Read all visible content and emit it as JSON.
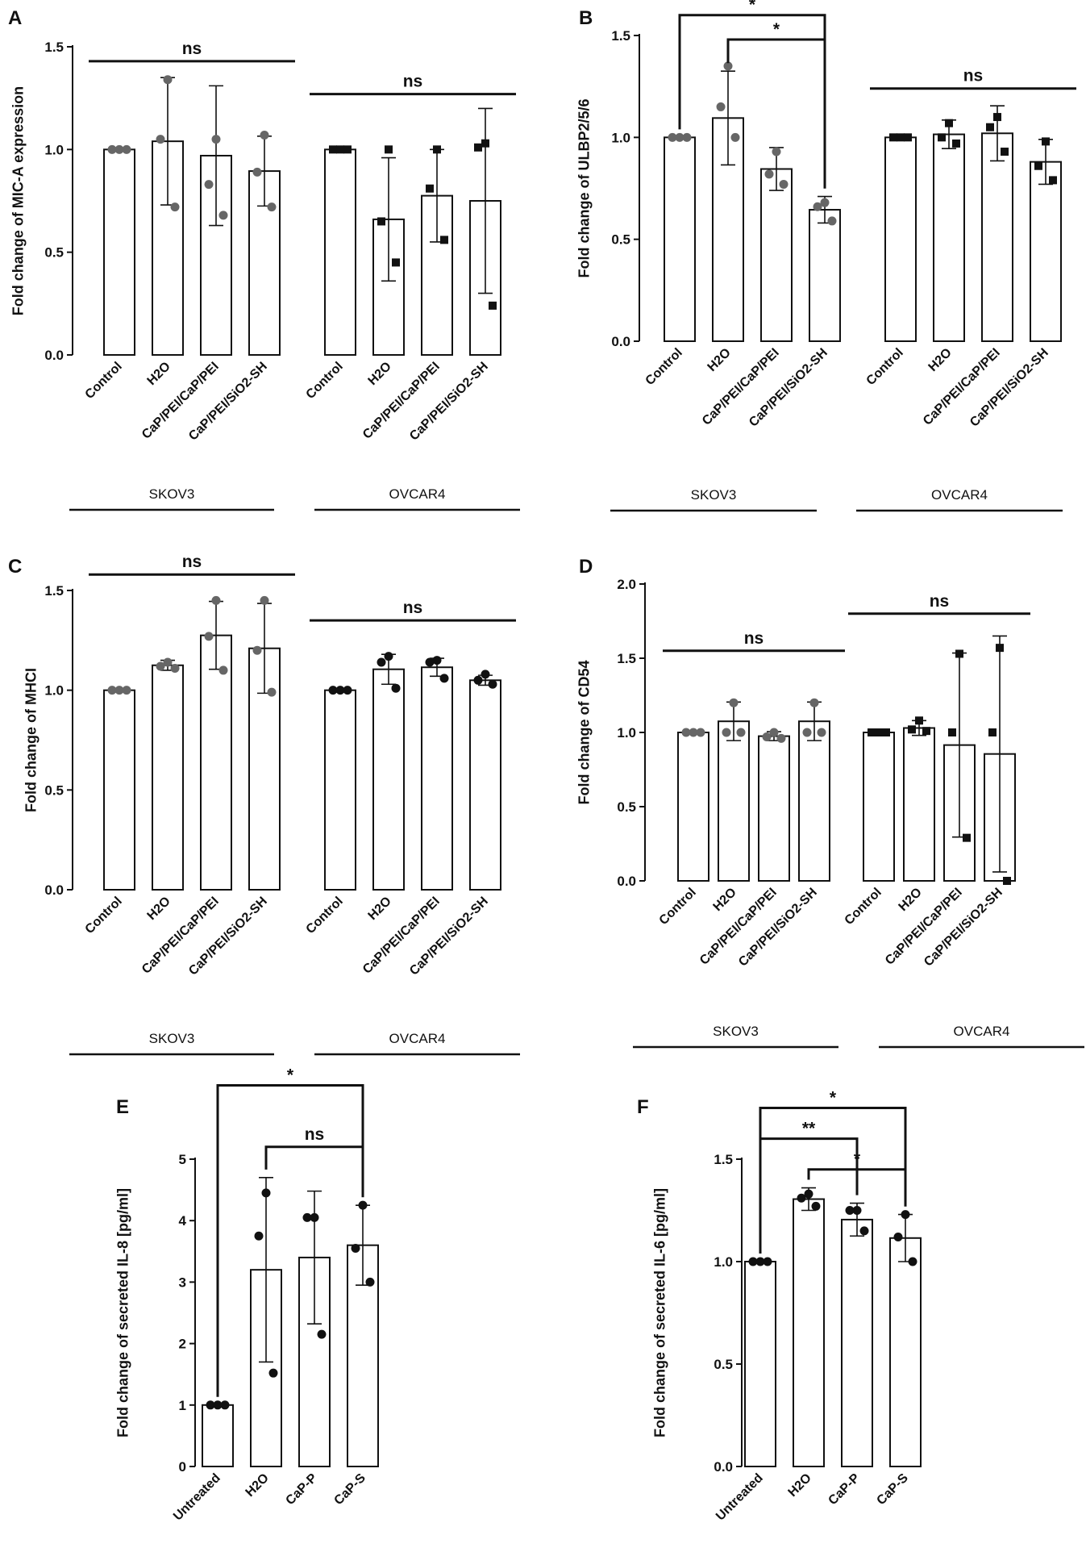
{
  "figure": {
    "background": "#ffffff",
    "ink": "#111111",
    "dot_color_dark": "#111111",
    "dot_color_grey": "#666666"
  },
  "chart_data": [
    {
      "panel": "A",
      "type": "bar",
      "ylabel": "Fold change of MIC-A expression",
      "ylim": [
        0,
        1.5
      ],
      "yticks": [
        "0.0",
        "0.5",
        "1.0",
        "1.5"
      ],
      "categories": [
        "Control",
        "H2O",
        "CaP/PEI/CaP/PEI",
        "CaP/PEI/SiO2-SH",
        "Control",
        "H2O",
        "CaP/PEI/CaP/PEI",
        "CaP/PEI/SiO2-SH"
      ],
      "groups": [
        {
          "label": "SKOV3",
          "from": 0,
          "to": 3
        },
        {
          "label": "OVCAR4",
          "from": 4,
          "to": 7
        }
      ],
      "values": [
        1.0,
        1.04,
        0.97,
        0.895,
        1.0,
        0.66,
        0.775,
        0.75
      ],
      "errors": [
        0.0,
        0.31,
        0.34,
        0.17,
        0.0,
        0.3,
        0.225,
        0.45
      ],
      "points": [
        [
          1.0,
          1.0,
          1.0
        ],
        [
          1.34,
          1.05,
          0.72
        ],
        [
          1.05,
          0.83,
          0.68
        ],
        [
          1.07,
          0.89,
          0.72
        ],
        [
          1.0,
          1.0,
          1.0
        ],
        [
          1.0,
          0.65,
          0.45
        ],
        [
          1.0,
          0.81,
          0.56
        ],
        [
          1.03,
          1.01,
          0.24
        ]
      ],
      "point_markers": [
        "circle",
        "circle",
        "circle",
        "circle",
        "square",
        "square",
        "square",
        "square"
      ],
      "point_shades": [
        "grey",
        "grey",
        "grey",
        "grey",
        "dark",
        "dark",
        "dark",
        "dark"
      ],
      "annotations": [
        {
          "text": "ns",
          "type": "line",
          "from": 0,
          "to": 3,
          "y": 1.43
        },
        {
          "text": "ns",
          "type": "line",
          "from": 4,
          "to": 7,
          "y": 1.27
        }
      ]
    },
    {
      "panel": "B",
      "type": "bar",
      "ylabel": "Fold change of ULBP2/5/6",
      "ylim": [
        0,
        1.5
      ],
      "yticks": [
        "0.0",
        "0.5",
        "1.0",
        "1.5"
      ],
      "categories": [
        "Control",
        "H2O",
        "CaP/PEI/CaP/PEI",
        "CaP/PEI/SiO2-SH",
        "Control",
        "H2O",
        "CaP/PEI/CaP/PEI",
        "CaP/PEI/SiO2-SH"
      ],
      "groups": [
        {
          "label": "SKOV3",
          "from": 0,
          "to": 3
        },
        {
          "label": "OVCAR4",
          "from": 4,
          "to": 7
        }
      ],
      "values": [
        1.0,
        1.095,
        0.845,
        0.645,
        1.0,
        1.015,
        1.02,
        0.88
      ],
      "errors": [
        0.0,
        0.23,
        0.105,
        0.065,
        0.0,
        0.07,
        0.135,
        0.11
      ],
      "points": [
        [
          1.0,
          1.0,
          1.0
        ],
        [
          1.35,
          1.15,
          1.0
        ],
        [
          0.93,
          0.82,
          0.77
        ],
        [
          0.68,
          0.66,
          0.59
        ],
        [
          1.0,
          1.0,
          1.0
        ],
        [
          1.07,
          1.0,
          0.97
        ],
        [
          1.1,
          1.05,
          0.93
        ],
        [
          0.98,
          0.86,
          0.79
        ]
      ],
      "point_markers": [
        "circle",
        "circle",
        "circle",
        "circle",
        "square",
        "square",
        "square",
        "square"
      ],
      "point_shades": [
        "grey",
        "grey",
        "grey",
        "grey",
        "dark",
        "dark",
        "dark",
        "dark"
      ],
      "annotations": [
        {
          "text": "*",
          "type": "bracket",
          "from": 0,
          "to": 3,
          "y": 1.6
        },
        {
          "text": "*",
          "type": "bracket",
          "from": 1,
          "to": 3,
          "y": 1.48
        },
        {
          "text": "ns",
          "type": "line",
          "from": 4,
          "to": 7,
          "y": 1.24
        }
      ]
    },
    {
      "panel": "C",
      "type": "bar",
      "ylabel": "Fold change of MHCI",
      "ylim": [
        0,
        1.5
      ],
      "yticks": [
        "0.0",
        "0.5",
        "1.0",
        "1.5"
      ],
      "categories": [
        "Control",
        "H2O",
        "CaP/PEI/CaP/PEI",
        "CaP/PEI/SiO2-SH",
        "Control",
        "H2O",
        "CaP/PEI/CaP/PEI",
        "CaP/PEI/SiO2-SH"
      ],
      "groups": [
        {
          "label": "SKOV3",
          "from": 0,
          "to": 3
        },
        {
          "label": "OVCAR4",
          "from": 4,
          "to": 7
        }
      ],
      "values": [
        1.0,
        1.125,
        1.275,
        1.21,
        1.0,
        1.105,
        1.115,
        1.05
      ],
      "errors": [
        0.0,
        0.025,
        0.17,
        0.225,
        0.0,
        0.075,
        0.045,
        0.025
      ],
      "points": [
        [
          1.0,
          1.0,
          1.0
        ],
        [
          1.14,
          1.12,
          1.11
        ],
        [
          1.45,
          1.27,
          1.1
        ],
        [
          1.45,
          1.2,
          0.99
        ],
        [
          1.0,
          1.0,
          1.0
        ],
        [
          1.17,
          1.14,
          1.01
        ],
        [
          1.15,
          1.14,
          1.06
        ],
        [
          1.08,
          1.05,
          1.03
        ]
      ],
      "point_markers": [
        "circle",
        "circle",
        "circle",
        "circle",
        "circle",
        "circle",
        "circle",
        "circle"
      ],
      "point_shades": [
        "grey",
        "grey",
        "grey",
        "grey",
        "dark",
        "dark",
        "dark",
        "dark"
      ],
      "annotations": [
        {
          "text": "ns",
          "type": "line",
          "from": 0,
          "to": 3,
          "y": 1.58
        },
        {
          "text": "ns",
          "type": "line",
          "from": 4,
          "to": 7,
          "y": 1.35
        }
      ]
    },
    {
      "panel": "D",
      "type": "bar",
      "ylabel": "Fold change of CD54",
      "ylim": [
        0,
        2.0
      ],
      "yticks": [
        "0.0",
        "0.5",
        "1.0",
        "1.5",
        "2.0"
      ],
      "categories": [
        "Control",
        "H2O",
        "CaP/PEI/CaP/PEI",
        "CaP/PEI/SiO2-SH",
        "Control",
        "H2O",
        "CaP/PEI/CaP/PEI",
        "CaP/PEI/SiO2-SH"
      ],
      "groups": [
        {
          "label": "SKOV3",
          "from": 0,
          "to": 3
        },
        {
          "label": "OVCAR4",
          "from": 4,
          "to": 7
        }
      ],
      "values": [
        1.0,
        1.075,
        0.975,
        1.075,
        1.0,
        1.03,
        0.915,
        0.855
      ],
      "errors": [
        0.0,
        0.13,
        0.03,
        0.13,
        0.0,
        0.05,
        0.62,
        0.795
      ],
      "points": [
        [
          1.0,
          1.0,
          1.0
        ],
        [
          1.2,
          1.0,
          1.0
        ],
        [
          1.0,
          0.97,
          0.96
        ],
        [
          1.2,
          1.0,
          1.0
        ],
        [
          1.0,
          1.0,
          1.0
        ],
        [
          1.08,
          1.02,
          1.01
        ],
        [
          1.53,
          1.0,
          0.29
        ],
        [
          1.57,
          1.0,
          0.0
        ]
      ],
      "point_markers": [
        "circle",
        "circle",
        "circle",
        "circle",
        "square",
        "square",
        "square",
        "square"
      ],
      "point_shades": [
        "grey",
        "grey",
        "grey",
        "grey",
        "dark",
        "dark",
        "dark",
        "dark"
      ],
      "annotations": [
        {
          "text": "ns",
          "type": "line",
          "from": 0,
          "to": 3,
          "y": 1.55
        },
        {
          "text": "ns",
          "type": "line",
          "from": 4,
          "to": 7,
          "y": 1.8
        }
      ]
    },
    {
      "panel": "E",
      "type": "bar",
      "ylabel": "Fold change of secreted IL-8 [pg/ml]",
      "ylim": [
        0,
        5
      ],
      "yticks": [
        "0",
        "1",
        "2",
        "3",
        "4",
        "5"
      ],
      "categories": [
        "Untreated",
        "H2O",
        "CaP-P",
        "CaP-S"
      ],
      "groups": [],
      "values": [
        1.0,
        3.2,
        3.4,
        3.6
      ],
      "errors": [
        0.0,
        1.5,
        1.08,
        0.65
      ],
      "points": [
        [
          1.0,
          1.0,
          1.0
        ],
        [
          4.45,
          3.75,
          1.52
        ],
        [
          4.05,
          4.05,
          2.15
        ],
        [
          4.25,
          3.55,
          3.0
        ]
      ],
      "point_markers": [
        "circle",
        "circle",
        "circle",
        "circle"
      ],
      "point_shades": [
        "dark",
        "dark",
        "dark",
        "dark"
      ],
      "annotations": [
        {
          "text": "*",
          "type": "bracket",
          "from": 0,
          "to": 3,
          "y": 6.2
        },
        {
          "text": "ns",
          "type": "bracket",
          "from": 1,
          "to": 3,
          "y": 5.2
        }
      ]
    },
    {
      "panel": "F",
      "type": "bar",
      "ylabel": "Fold change of secreted IL-6 [pg/ml]",
      "ylim": [
        0,
        1.5
      ],
      "yticks": [
        "0.0",
        "0.5",
        "1.0",
        "1.5"
      ],
      "categories": [
        "Untreated",
        "H2O",
        "CaP-P",
        "CaP-S"
      ],
      "groups": [],
      "values": [
        1.0,
        1.305,
        1.205,
        1.115
      ],
      "errors": [
        0.0,
        0.055,
        0.08,
        0.115
      ],
      "points": [
        [
          1.0,
          1.0,
          1.0
        ],
        [
          1.33,
          1.31,
          1.27
        ],
        [
          1.25,
          1.25,
          1.15
        ],
        [
          1.23,
          1.12,
          1.0
        ]
      ],
      "point_markers": [
        "circle",
        "circle",
        "circle",
        "circle"
      ],
      "point_shades": [
        "dark",
        "dark",
        "dark",
        "dark"
      ],
      "annotations": [
        {
          "text": "*",
          "type": "bracket",
          "from": 0,
          "to": 3,
          "y": 1.75
        },
        {
          "text": "**",
          "type": "bracket",
          "from": 0,
          "to": 2,
          "y": 1.6
        },
        {
          "text": "*",
          "type": "bracket",
          "from": 1,
          "to": 3,
          "y": 1.45
        }
      ]
    }
  ]
}
